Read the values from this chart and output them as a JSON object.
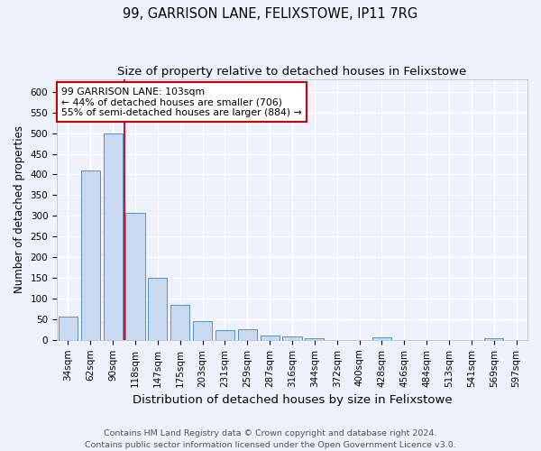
{
  "title": "99, GARRISON LANE, FELIXSTOWE, IP11 7RG",
  "subtitle": "Size of property relative to detached houses in Felixstowe",
  "xlabel": "Distribution of detached houses by size in Felixstowe",
  "ylabel": "Number of detached properties",
  "categories": [
    "34sqm",
    "62sqm",
    "90sqm",
    "118sqm",
    "147sqm",
    "175sqm",
    "203sqm",
    "231sqm",
    "259sqm",
    "287sqm",
    "316sqm",
    "344sqm",
    "372sqm",
    "400sqm",
    "428sqm",
    "456sqm",
    "484sqm",
    "513sqm",
    "541sqm",
    "569sqm",
    "597sqm"
  ],
  "values": [
    57,
    410,
    500,
    307,
    150,
    84,
    45,
    24,
    25,
    10,
    8,
    5,
    0,
    0,
    6,
    0,
    0,
    0,
    0,
    5,
    0
  ],
  "bar_color": "#c9d9f0",
  "bar_edge_color": "#5b8fc9",
  "red_line_x": 2.5,
  "annotation_text": "99 GARRISON LANE: 103sqm\n← 44% of detached houses are smaller (706)\n55% of semi-detached houses are larger (884) →",
  "annotation_box_color": "white",
  "annotation_box_edge": "#cc0000",
  "footer_line1": "Contains HM Land Registry data © Crown copyright and database right 2024.",
  "footer_line2": "Contains public sector information licensed under the Open Government Licence v3.0.",
  "background_color": "#eef2fc",
  "ylim": [
    0,
    630
  ],
  "yticks": [
    0,
    50,
    100,
    150,
    200,
    250,
    300,
    350,
    400,
    450,
    500,
    550,
    600
  ],
  "grid_color": "#ffffff",
  "title_fontsize": 10.5,
  "subtitle_fontsize": 9.5,
  "xlabel_fontsize": 9.5,
  "ylabel_fontsize": 8.5,
  "tick_fontsize": 7.5,
  "annot_fontsize": 7.8,
  "footer_fontsize": 6.8
}
